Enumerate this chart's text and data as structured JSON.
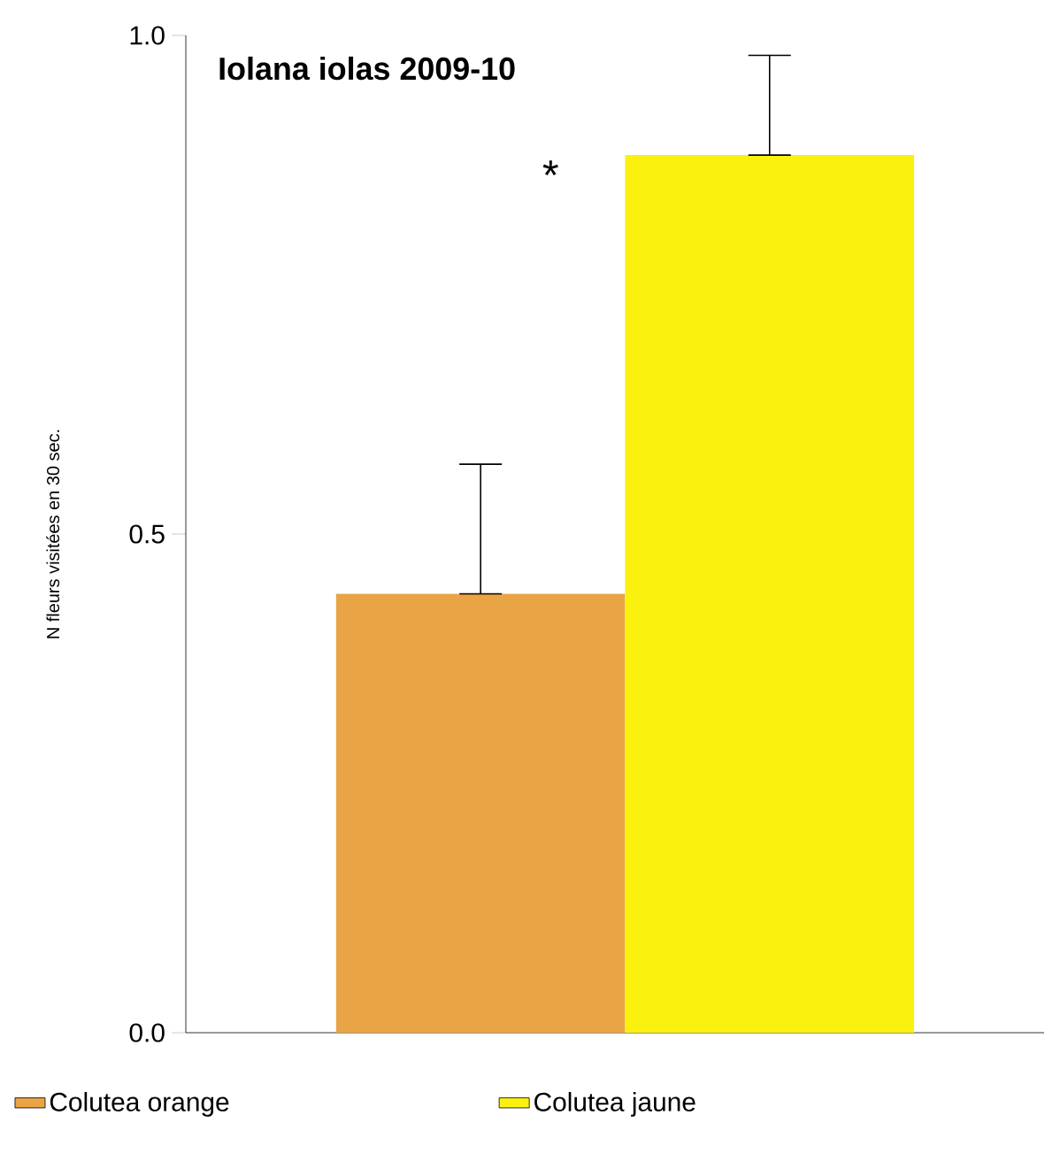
{
  "chart_data": {
    "type": "bar",
    "title": "Iolana iolas 2009-10",
    "ylabel": "N fleurs visitées en 30 sec.",
    "categories": [
      null
    ],
    "series": [
      {
        "name": "Colutea orange",
        "color": "#e9a446",
        "values": [
          0.44
        ],
        "errors": [
          [
            0.44,
            0.57
          ]
        ]
      },
      {
        "name": "Colutea jaune",
        "color": "#fbf10f",
        "values": [
          0.88
        ],
        "errors": [
          [
            0.88,
            0.98
          ]
        ]
      }
    ],
    "ylim": [
      0,
      1.0
    ],
    "yticks": [
      {
        "value": 0,
        "label": "0.0"
      },
      {
        "value": 0.5,
        "label": "0.5"
      },
      {
        "value": 1.0,
        "label": "1.0"
      }
    ],
    "annotations": [
      "*"
    ],
    "legend": "bottom"
  }
}
